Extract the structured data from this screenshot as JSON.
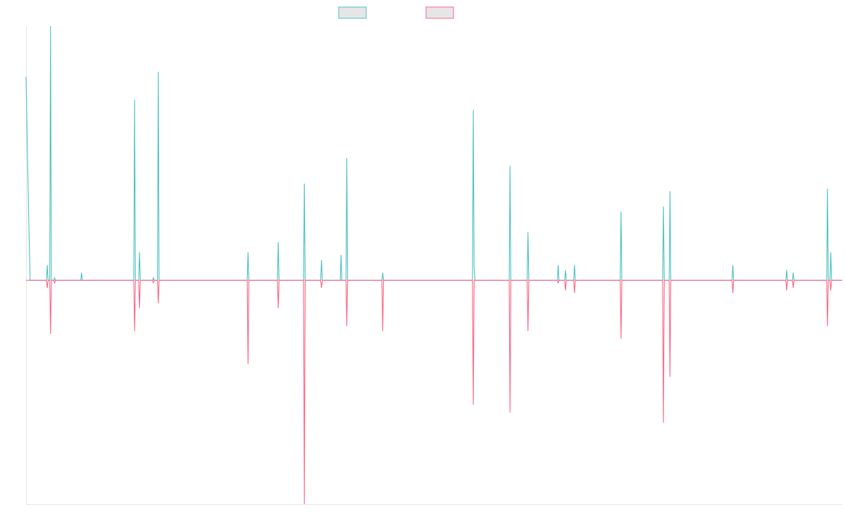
{
  "chart_data": {
    "type": "line",
    "title": "",
    "xlabel": "",
    "ylabel": "",
    "legend_position": "top-center",
    "grid": false,
    "ylim": [
      -88,
      100
    ],
    "xlim": [
      0,
      1000
    ],
    "colors": {
      "series_1": "#4bc0c0",
      "series_2": "#ff6384",
      "legend_fill": "#e6e6e6",
      "axis": "#e6e6e6"
    },
    "series": [
      {
        "key": "series_1",
        "color": "#4bc0c0",
        "points": [
          [
            0,
            80
          ],
          [
            3,
            28
          ],
          [
            5,
            0
          ],
          [
            25,
            0
          ],
          [
            26,
            6
          ],
          [
            27,
            0
          ],
          [
            29,
            0
          ],
          [
            30,
            100
          ],
          [
            31,
            0
          ],
          [
            34,
            0
          ],
          [
            35,
            1
          ],
          [
            36,
            0
          ],
          [
            67,
            0
          ],
          [
            68,
            3
          ],
          [
            69,
            0
          ],
          [
            132,
            0
          ],
          [
            133,
            71
          ],
          [
            134,
            0
          ],
          [
            138,
            0
          ],
          [
            139,
            11
          ],
          [
            140,
            0
          ],
          [
            155,
            0
          ],
          [
            156,
            1
          ],
          [
            157,
            0
          ],
          [
            161,
            0
          ],
          [
            162,
            82
          ],
          [
            163,
            0
          ],
          [
            271,
            0
          ],
          [
            272,
            11
          ],
          [
            273,
            0
          ],
          [
            308,
            0
          ],
          [
            309,
            15
          ],
          [
            310,
            0
          ],
          [
            340,
            0
          ],
          [
            341,
            38
          ],
          [
            342,
            0
          ],
          [
            361,
            0
          ],
          [
            362,
            8
          ],
          [
            363,
            0
          ],
          [
            385,
            0
          ],
          [
            386,
            10
          ],
          [
            387,
            0
          ],
          [
            392,
            0
          ],
          [
            393,
            48
          ],
          [
            394,
            0
          ],
          [
            436,
            0
          ],
          [
            437,
            3
          ],
          [
            438,
            0
          ],
          [
            547,
            0
          ],
          [
            548,
            67
          ],
          [
            549,
            5
          ],
          [
            550,
            0
          ],
          [
            592,
            0
          ],
          [
            593,
            45
          ],
          [
            594,
            0
          ],
          [
            614,
            0
          ],
          [
            615,
            19
          ],
          [
            616,
            0
          ],
          [
            651,
            0
          ],
          [
            652,
            6
          ],
          [
            653,
            0
          ],
          [
            660,
            0
          ],
          [
            661,
            4
          ],
          [
            662,
            0
          ],
          [
            671,
            0
          ],
          [
            672,
            6
          ],
          [
            673,
            0
          ],
          [
            728,
            0
          ],
          [
            729,
            27
          ],
          [
            730,
            0
          ],
          [
            780,
            0
          ],
          [
            781,
            29
          ],
          [
            782,
            0
          ],
          [
            788,
            0
          ],
          [
            789,
            35
          ],
          [
            790,
            0
          ],
          [
            865,
            0
          ],
          [
            866,
            6
          ],
          [
            867,
            0
          ],
          [
            931,
            0
          ],
          [
            932,
            4
          ],
          [
            933,
            0
          ],
          [
            939,
            0
          ],
          [
            940,
            3
          ],
          [
            941,
            0
          ],
          [
            981,
            0
          ],
          [
            982,
            36
          ],
          [
            983,
            0
          ],
          [
            985,
            0
          ],
          [
            986,
            11
          ],
          [
            987,
            0
          ],
          [
            1000,
            0
          ]
        ]
      },
      {
        "key": "series_2",
        "color": "#ff6384",
        "points": [
          [
            0,
            0
          ],
          [
            25,
            0
          ],
          [
            26,
            -3
          ],
          [
            27,
            0
          ],
          [
            29,
            0
          ],
          [
            30,
            -21
          ],
          [
            31,
            0
          ],
          [
            34,
            0
          ],
          [
            35,
            -1
          ],
          [
            36,
            0
          ],
          [
            132,
            0
          ],
          [
            133,
            -20
          ],
          [
            134,
            0
          ],
          [
            138,
            0
          ],
          [
            139,
            -11
          ],
          [
            140,
            0
          ],
          [
            155,
            0
          ],
          [
            156,
            -1
          ],
          [
            157,
            0
          ],
          [
            161,
            0
          ],
          [
            162,
            -9
          ],
          [
            163,
            0
          ],
          [
            271,
            0
          ],
          [
            272,
            -33
          ],
          [
            273,
            0
          ],
          [
            308,
            0
          ],
          [
            309,
            -11
          ],
          [
            310,
            0
          ],
          [
            340,
            0
          ],
          [
            341,
            -88
          ],
          [
            342,
            0
          ],
          [
            361,
            0
          ],
          [
            362,
            -3
          ],
          [
            363,
            0
          ],
          [
            392,
            0
          ],
          [
            393,
            -18
          ],
          [
            394,
            0
          ],
          [
            436,
            0
          ],
          [
            437,
            -20
          ],
          [
            438,
            0
          ],
          [
            547,
            0
          ],
          [
            548,
            -49
          ],
          [
            549,
            0
          ],
          [
            592,
            0
          ],
          [
            593,
            -52
          ],
          [
            594,
            0
          ],
          [
            614,
            0
          ],
          [
            615,
            -20
          ],
          [
            616,
            0
          ],
          [
            651,
            0
          ],
          [
            652,
            -1
          ],
          [
            653,
            0
          ],
          [
            660,
            0
          ],
          [
            661,
            -4
          ],
          [
            662,
            0
          ],
          [
            671,
            0
          ],
          [
            672,
            -5
          ],
          [
            673,
            0
          ],
          [
            728,
            0
          ],
          [
            729,
            -23
          ],
          [
            730,
            0
          ],
          [
            780,
            0
          ],
          [
            781,
            -56
          ],
          [
            782,
            0
          ],
          [
            788,
            0
          ],
          [
            789,
            -38
          ],
          [
            790,
            0
          ],
          [
            865,
            0
          ],
          [
            866,
            -5
          ],
          [
            867,
            0
          ],
          [
            931,
            0
          ],
          [
            932,
            -4
          ],
          [
            933,
            0
          ],
          [
            939,
            0
          ],
          [
            940,
            -3
          ],
          [
            941,
            0
          ],
          [
            981,
            0
          ],
          [
            982,
            -18
          ],
          [
            983,
            0
          ],
          [
            985,
            0
          ],
          [
            986,
            -4
          ],
          [
            987,
            0
          ],
          [
            1000,
            0
          ]
        ]
      }
    ]
  }
}
